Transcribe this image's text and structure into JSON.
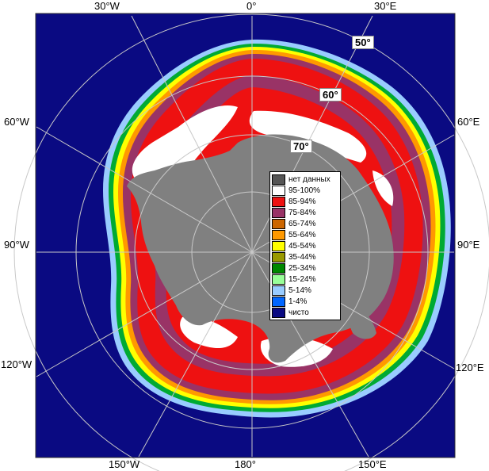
{
  "colors": {
    "ocean": "#0a0a82",
    "land": "#808080",
    "frame": "#ffffff",
    "grid": "#c8c8c8",
    "ice_red": "#ee1111",
    "ice_white": "#ffffff",
    "ice_purple": "#993366",
    "ice_orange": "#ff9900",
    "ice_yellow": "#ffff00",
    "ice_green": "#00aa33",
    "ice_lightgreen": "#99ff99",
    "ice_lightblue": "#99ccff"
  },
  "longitude_labels": {
    "w30": "30°W",
    "zero": "0°",
    "e30": "30°E",
    "w60": "60°W",
    "e60": "60°E",
    "w90": "90°W",
    "e90": "90°E",
    "w120": "120°W",
    "e120": "120°E",
    "w150": "150°W",
    "lon180": "180°",
    "e150": "150°E"
  },
  "latitude_labels": {
    "lat50": "50°",
    "lat60": "60°",
    "lat70": "70°"
  },
  "legend": [
    {
      "label": "нет данных",
      "color": "#555555"
    },
    {
      "label": "95-100%",
      "color": "#ffffff"
    },
    {
      "label": "85-94%",
      "color": "#ee1111"
    },
    {
      "label": "75-84%",
      "color": "#993366"
    },
    {
      "label": "65-74%",
      "color": "#cc6600"
    },
    {
      "label": "55-64%",
      "color": "#ff9900"
    },
    {
      "label": "45-54%",
      "color": "#ffff00"
    },
    {
      "label": "35-44%",
      "color": "#999900"
    },
    {
      "label": "25-34%",
      "color": "#008800"
    },
    {
      "label": "15-24%",
      "color": "#99ff99"
    },
    {
      "label": "5-14%",
      "color": "#99ccff"
    },
    {
      "label": "1-4%",
      "color": "#0066ff"
    },
    {
      "label": "чисто",
      "color": "#0a0a82"
    }
  ]
}
